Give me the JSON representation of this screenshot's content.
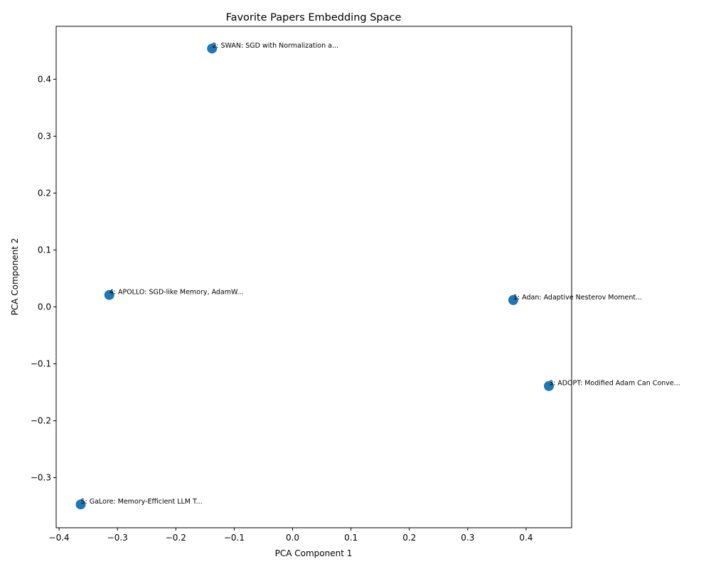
{
  "chart_data": {
    "type": "scatter",
    "title": "Favorite Papers Embedding Space",
    "xlabel": "PCA Component 1",
    "ylabel": "PCA Component 2",
    "xlim": [
      -0.405,
      0.478
    ],
    "ylim": [
      -0.388,
      0.493
    ],
    "xticks": [
      -0.4,
      -0.3,
      -0.2,
      -0.1,
      0.0,
      0.1,
      0.2,
      0.3,
      0.4
    ],
    "xtick_labels": [
      "−0.4",
      "−0.3",
      "−0.2",
      "−0.1",
      "0.0",
      "0.1",
      "0.2",
      "0.3",
      "0.4"
    ],
    "yticks": [
      -0.3,
      -0.2,
      -0.1,
      0.0,
      0.1,
      0.2,
      0.3,
      0.4
    ],
    "ytick_labels": [
      "−0.3",
      "−0.2",
      "−0.1",
      "0.0",
      "0.1",
      "0.2",
      "0.3",
      "0.4"
    ],
    "grid": false,
    "marker_color": "#1f77b4",
    "points": [
      {
        "x": 0.378,
        "y": 0.012,
        "label": "1: Adan: Adaptive Nesterov Moment..."
      },
      {
        "x": -0.138,
        "y": 0.454,
        "label": "2: SWAN: SGD with Normalization a..."
      },
      {
        "x": 0.439,
        "y": -0.139,
        "label": "3: ADOPT: Modified Adam Can Conve..."
      },
      {
        "x": -0.314,
        "y": 0.021,
        "label": "4: APOLLO: SGD-like Memory, AdamW..."
      },
      {
        "x": -0.363,
        "y": -0.347,
        "label": "5: GaLore: Memory-Efficient LLM T..."
      }
    ]
  }
}
